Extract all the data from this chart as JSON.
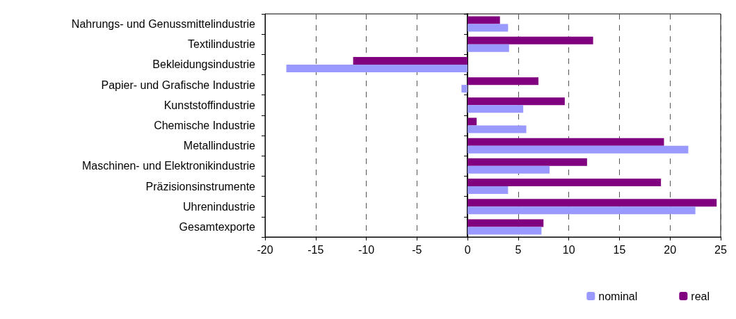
{
  "chart_data": {
    "type": "bar",
    "orientation": "horizontal",
    "categories": [
      "Nahrungs- und Genussmittelindustrie",
      "Textilindustrie",
      "Bekleidungsindustrie",
      "Papier- und Grafische Industrie",
      "Kunststoffindustrie",
      "Chemische Industrie",
      "Metallindustrie",
      "Maschinen- und Elektronikindustrie",
      "Präzisionsinstrumente",
      "Uhrenindustrie",
      "Gesamtexporte"
    ],
    "series": [
      {
        "name": "nominal",
        "color": "#9999ff",
        "values": [
          4.0,
          4.1,
          -17.9,
          -0.6,
          5.5,
          5.8,
          21.8,
          8.1,
          4.0,
          22.5,
          7.3
        ]
      },
      {
        "name": "real",
        "color": "#800080",
        "values": [
          3.2,
          12.4,
          -11.3,
          7.0,
          9.6,
          0.9,
          19.4,
          11.8,
          19.1,
          24.6,
          7.5
        ]
      }
    ],
    "xlim": [
      -20,
      25
    ],
    "xticks": [
      -20,
      -15,
      -10,
      -5,
      0,
      5,
      10,
      15,
      20,
      25
    ],
    "grid": "x",
    "legend": "bottom right"
  }
}
